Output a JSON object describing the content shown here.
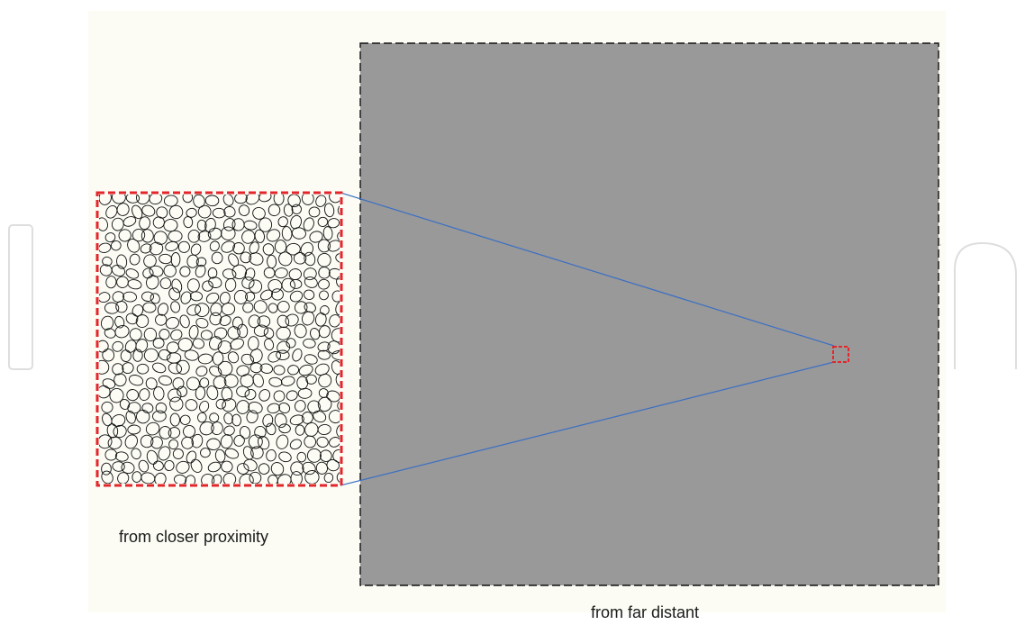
{
  "colors": {
    "page_background": "#ffffff",
    "figure_background": "#fcfcf5",
    "far_view_fill": "#999999",
    "far_view_border": "#111111",
    "zoom_frame": "#e3262b",
    "connector_lines": "#3b6fc4",
    "pebble_outline": "#111111"
  },
  "labels": {
    "close_view": "from closer proximity",
    "far_view": "from far distant"
  }
}
